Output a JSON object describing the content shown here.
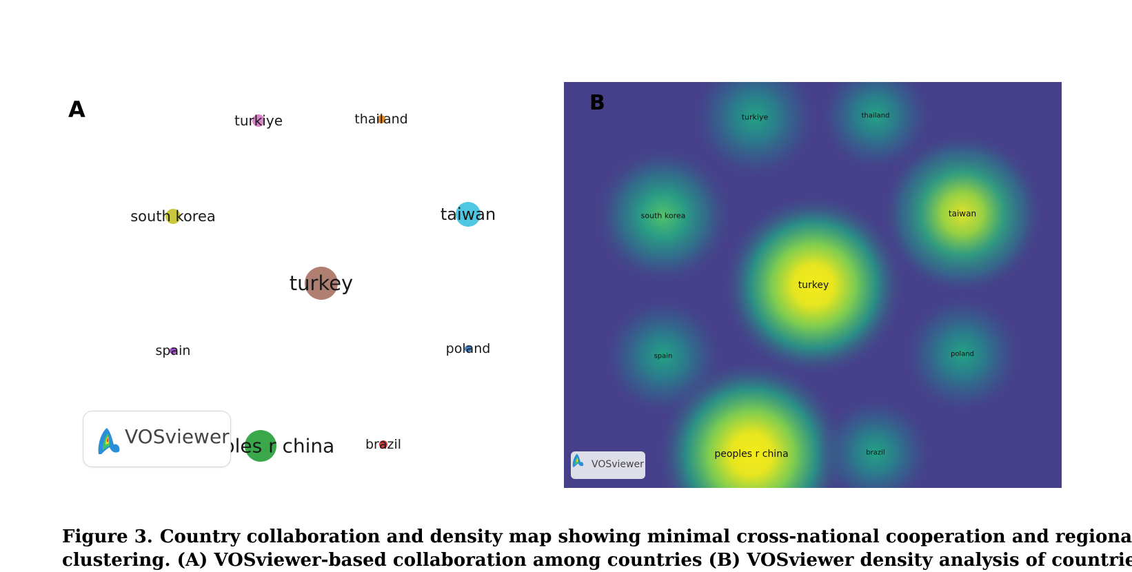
{
  "panel_a": {
    "letter": "A",
    "nodes": [
      {
        "id": "turkiye",
        "label": "turkiye",
        "color": "#d985c9"
      },
      {
        "id": "thailand",
        "label": "thailand",
        "color": "#e08a2c"
      },
      {
        "id": "south-korea",
        "label": "south korea",
        "color": "#c9c83d"
      },
      {
        "id": "taiwan",
        "label": "taiwan",
        "color": "#4fc7e3"
      },
      {
        "id": "turkey",
        "label": "turkey",
        "color": "#b07f72"
      },
      {
        "id": "spain",
        "label": "spain",
        "color": "#9b4fc1"
      },
      {
        "id": "poland",
        "label": "poland",
        "color": "#3f7fc2"
      },
      {
        "id": "peoples-r-china",
        "label": "peoples r china",
        "color": "#3aa84a"
      },
      {
        "id": "brazil",
        "label": "brazil",
        "color": "#d23a3a"
      }
    ],
    "logo_text": "VOSviewer"
  },
  "panel_b": {
    "letter": "B",
    "background": "#46408a",
    "nodes": [
      {
        "id": "turkiye",
        "label": "turkiye",
        "density": 0.45
      },
      {
        "id": "thailand",
        "label": "thailand",
        "density": 0.4
      },
      {
        "id": "south-korea",
        "label": "south korea",
        "density": 0.55
      },
      {
        "id": "taiwan",
        "label": "taiwan",
        "density": 0.75
      },
      {
        "id": "turkey",
        "label": "turkey",
        "density": 1.0
      },
      {
        "id": "spain",
        "label": "spain",
        "density": 0.4
      },
      {
        "id": "poland",
        "label": "poland",
        "density": 0.4
      },
      {
        "id": "peoples-r-china",
        "label": "peoples r china",
        "density": 1.0
      },
      {
        "id": "brazil",
        "label": "brazil",
        "density": 0.4
      }
    ],
    "logo_text": "VOSviewer"
  },
  "caption": {
    "number": "Figure 3.",
    "line1": "Country collaboration and density map showing minimal cross-national cooperation and regional",
    "line2": "clustering. (A) VOSviewer-based collaboration among countries (B) VOSviewer density analysis of countries."
  }
}
